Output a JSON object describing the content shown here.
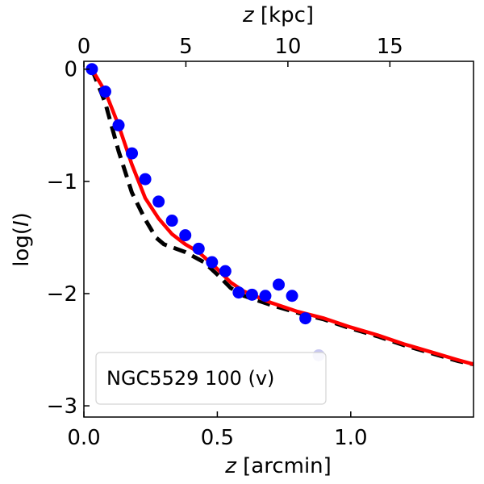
{
  "chart_data": {
    "type": "scatter",
    "xlabel_var": "z",
    "xlabel_unit": " [arcmin]",
    "ylabel_prefix": "log(",
    "ylabel_var": "I",
    "ylabel_suffix": ")",
    "top_xlabel_var": "z",
    "top_xlabel_unit": " [kpc]",
    "xlim": [
      0,
      1.46
    ],
    "ylim": [
      -3.1,
      0.07
    ],
    "top_xlim": [
      0,
      19.1
    ],
    "x_ticks": [
      0.0,
      0.5,
      1.0
    ],
    "x_tick_labels": [
      "0.0",
      "0.5",
      "1.0"
    ],
    "y_ticks": [
      0,
      -1,
      -2,
      -3
    ],
    "y_tick_labels": [
      "0",
      "−1",
      "−2",
      "−3"
    ],
    "top_ticks": [
      0,
      5,
      10,
      15
    ],
    "top_tick_labels": [
      "0",
      "5",
      "10",
      "15"
    ],
    "legend": {
      "label": "NGC5529 100 (v)",
      "placement": "lower-left"
    },
    "colors": {
      "points": "#0000ff",
      "faded_point": "#c8c8f0",
      "model_red": "#ff0000",
      "model_black": "#000000"
    },
    "series": [
      {
        "name": "observed",
        "kind": "scatter",
        "x": [
          0.03,
          0.08,
          0.13,
          0.18,
          0.23,
          0.28,
          0.33,
          0.38,
          0.43,
          0.48,
          0.53,
          0.58,
          0.63,
          0.68,
          0.73,
          0.78,
          0.83
        ],
        "y": [
          0.0,
          -0.2,
          -0.5,
          -0.75,
          -0.98,
          -1.18,
          -1.35,
          -1.48,
          -1.6,
          -1.72,
          -1.8,
          -1.99,
          -2.01,
          -2.02,
          -1.92,
          -2.02,
          -2.22
        ]
      },
      {
        "name": "observed-faded",
        "kind": "scatter",
        "x": [
          0.88
        ],
        "y": [
          -2.55
        ]
      },
      {
        "name": "model-red",
        "kind": "line",
        "x": [
          0.03,
          0.08,
          0.13,
          0.18,
          0.23,
          0.28,
          0.33,
          0.38,
          0.43,
          0.5,
          0.55,
          0.6,
          0.7,
          0.8,
          0.9,
          1.0,
          1.1,
          1.2,
          1.3,
          1.4,
          1.46
        ],
        "y": [
          0.0,
          -0.2,
          -0.5,
          -0.85,
          -1.15,
          -1.33,
          -1.47,
          -1.56,
          -1.63,
          -1.78,
          -1.9,
          -1.98,
          -2.08,
          -2.16,
          -2.22,
          -2.3,
          -2.37,
          -2.45,
          -2.52,
          -2.59,
          -2.63
        ]
      },
      {
        "name": "model-black",
        "kind": "dashed-line",
        "x": [
          0.03,
          0.08,
          0.13,
          0.18,
          0.23,
          0.27,
          0.3,
          0.38,
          0.45,
          0.5,
          0.55,
          0.6,
          0.7,
          0.8,
          0.9,
          1.0,
          1.1,
          1.2,
          1.3,
          1.4,
          1.46
        ],
        "y": [
          0.0,
          -0.3,
          -0.73,
          -1.1,
          -1.34,
          -1.5,
          -1.56,
          -1.63,
          -1.72,
          -1.83,
          -1.95,
          -2.02,
          -2.1,
          -2.17,
          -2.23,
          -2.31,
          -2.38,
          -2.46,
          -2.53,
          -2.6,
          -2.63
        ]
      }
    ]
  }
}
